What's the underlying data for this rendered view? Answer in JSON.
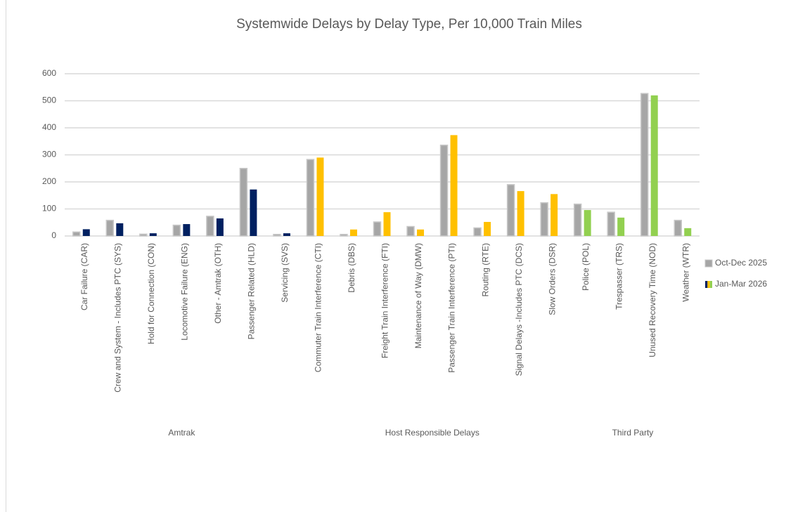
{
  "chart_data": {
    "type": "bar",
    "title": "Systemwide Delays by Delay Type, Per 10,000 Train Miles",
    "categories": [
      "Car Failure (CAR)",
      "Crew and System - Includes PTC (SYS)",
      "Hold for Connection (CON)",
      "Locomotive Failure (ENG)",
      "Other - Amtrak (OTH)",
      "Passenger Related (HLD)",
      "Servicing (SVS)",
      "Commuter Train Interference (CTI)",
      "Debris (DBS)",
      "Freight Train Interference (FTI)",
      "Maintenance of Way (DMW)",
      "Passenger Train Interference (PTI)",
      "Routing (RTE)",
      "Signal Delays -Includes PTC (DCS)",
      "Slow Orders (DSR)",
      "Police (POL)",
      "Trespasser (TRS)",
      "Unused Recovery Time (NOD)",
      "Weather (WTR)"
    ],
    "groups": [
      {
        "name": "Amtrak",
        "size": 7,
        "color": "#002060"
      },
      {
        "name": "Host Responsible Delays",
        "size": 8,
        "color": "#ffc000"
      },
      {
        "name": "Third Party",
        "size": 4,
        "color": "#92d050"
      }
    ],
    "series": [
      {
        "name": "Oct-Dec 2025",
        "color": "#a6a6a6",
        "values": [
          15,
          58,
          7,
          40,
          73,
          250,
          6,
          283,
          6,
          52,
          35,
          336,
          30,
          190,
          123,
          118,
          88,
          527,
          58
        ]
      },
      {
        "name": "Jan-Mar 2026",
        "values": [
          25,
          47,
          10,
          44,
          65,
          172,
          10,
          290,
          24,
          88,
          24,
          373,
          52,
          166,
          155,
          96,
          68,
          520,
          29
        ]
      }
    ],
    "ylim": [
      0,
      600
    ],
    "yticks": [
      0,
      100,
      200,
      300,
      400,
      500,
      600
    ],
    "grid": true,
    "legend": "right"
  }
}
